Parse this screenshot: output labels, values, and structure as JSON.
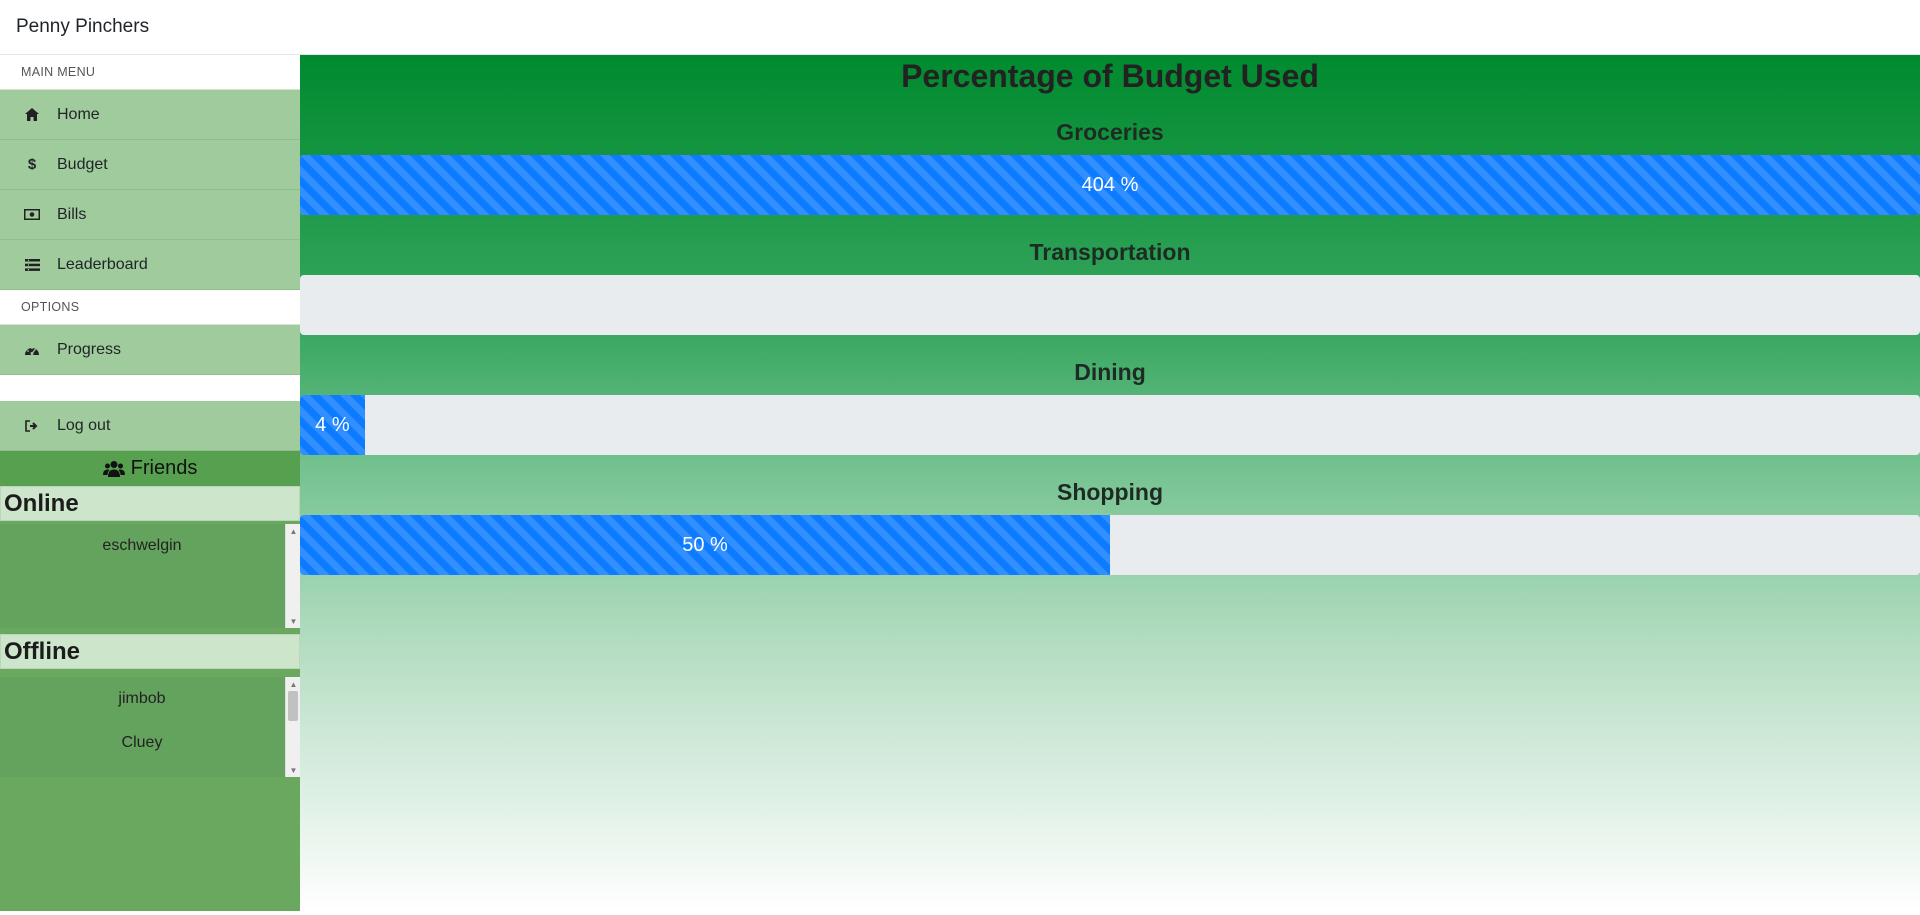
{
  "app": {
    "brand": "Penny Pinchers"
  },
  "sidebar": {
    "main_menu_header": "MAIN MENU",
    "main_menu": [
      {
        "label": "Home",
        "icon": "home-icon"
      },
      {
        "label": "Budget",
        "icon": "dollar-icon"
      },
      {
        "label": "Bills",
        "icon": "money-bill-icon"
      },
      {
        "label": "Leaderboard",
        "icon": "list-icon"
      }
    ],
    "options_header": "OPTIONS",
    "options": [
      {
        "label": "Progress",
        "icon": "dashboard-icon"
      }
    ],
    "logout": {
      "label": "Log out",
      "icon": "sign-out-icon"
    },
    "friends": {
      "title": "Friends",
      "online_header": "Online",
      "online": [
        "eschwelgin"
      ],
      "offline_header": "Offline",
      "offline": [
        "jimbob",
        "Cluey"
      ]
    }
  },
  "main": {
    "title": "Percentage of Budget Used",
    "categories": [
      {
        "name": "Groceries",
        "percent": 404,
        "label": "404 %"
      },
      {
        "name": "Transportation",
        "percent": 0,
        "label": ""
      },
      {
        "name": "Dining",
        "percent": 4,
        "label": "4 %"
      },
      {
        "name": "Shopping",
        "percent": 50,
        "label": "50 %"
      }
    ]
  },
  "colors": {
    "bar": "#0d7bff",
    "track": "#e9ecef",
    "sidebar_item": "#a0cb9c",
    "sidebar_bg": "#6aa85f",
    "main_top": "#008a2e"
  }
}
